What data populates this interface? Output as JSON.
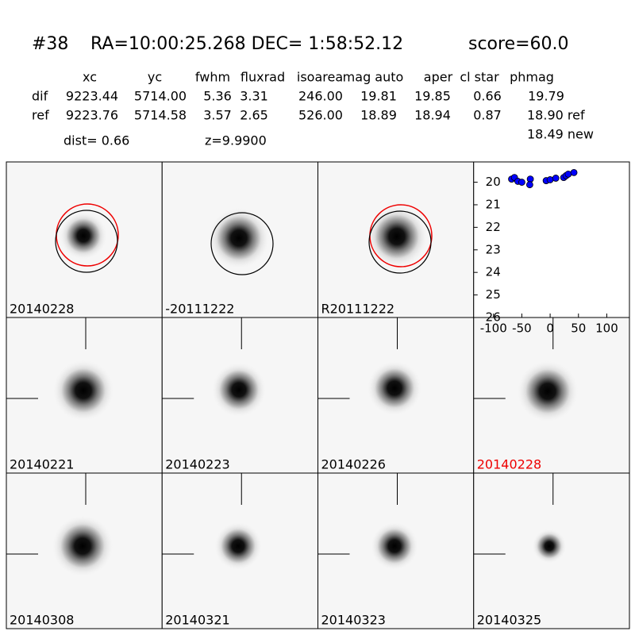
{
  "header": {
    "id": "#38",
    "coords": "RA=10:00:25.268 DEC= 1:58:52.12",
    "score": "score=60.0"
  },
  "table": {
    "columns": [
      "xc",
      "yc",
      "fwhm",
      "fluxrad",
      "isoarea",
      "mag auto",
      "aper",
      "cl star",
      "phmag"
    ],
    "rows": [
      [
        "dif",
        "9223.44",
        "5714.00",
        "5.36",
        "3.31",
        "246.00",
        "19.81",
        "19.85",
        "0.66",
        "19.79"
      ],
      [
        "ref",
        "9223.76",
        "5714.58",
        "3.57",
        "2.65",
        "526.00",
        "18.89",
        "18.94",
        "0.87",
        "18.90 ref"
      ]
    ],
    "extra": "18.49 new"
  },
  "dist": "dist=  0.66",
  "z": "z=9.9900",
  "panels": [
    "20140228",
    "-20111222",
    "R20111222",
    "20140221",
    "20140223",
    "20140226",
    "20140228",
    "20140308",
    "20140321",
    "20140323",
    "20140325"
  ],
  "chart_data": {
    "type": "scatter",
    "color": "#0000ff",
    "x": [
      -68,
      -63,
      -57,
      -50,
      -35,
      -36,
      -7,
      0,
      10,
      24,
      28,
      32,
      42
    ],
    "y": [
      19.86,
      19.79,
      19.96,
      20.0,
      19.86,
      20.11,
      19.93,
      19.89,
      19.82,
      19.79,
      19.71,
      19.64,
      19.57
    ],
    "xlim": [
      -135,
      140
    ],
    "ylim": [
      26,
      19.1
    ],
    "xticks": [
      -100,
      -50,
      0,
      50,
      100
    ],
    "yticks": [
      20,
      21,
      22,
      23,
      24,
      25,
      26
    ]
  }
}
